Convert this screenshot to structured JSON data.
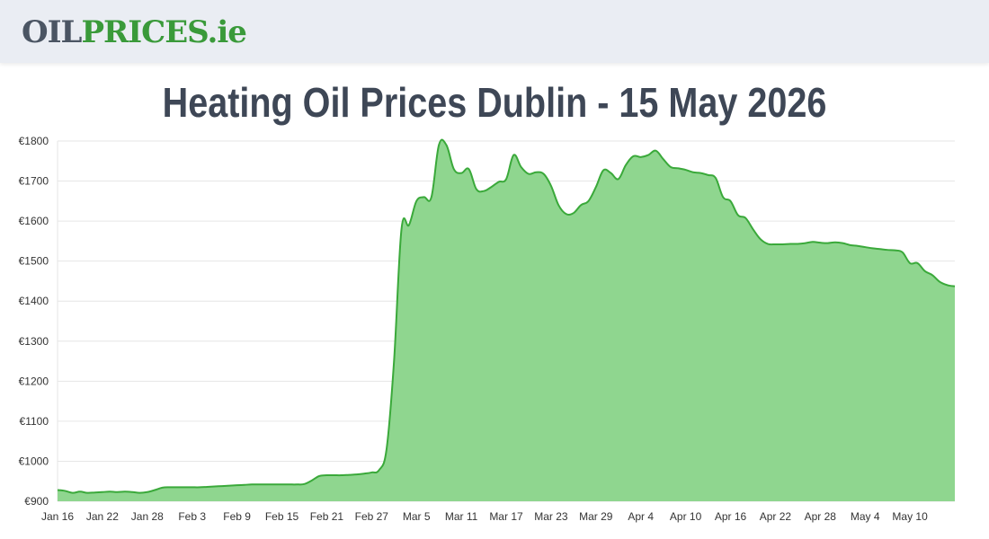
{
  "header": {
    "logo_part1": "OIL",
    "logo_part2": "PRICES",
    "logo_part3": ".ie"
  },
  "page_title": "Heating Oil Prices Dublin - 15 May 2026",
  "colors": {
    "line": "#3aa93a",
    "fill": "#8fd68f",
    "grid": "#e6e6e6",
    "axis_text": "#333333",
    "title": "#3e4756"
  },
  "chart_data": {
    "type": "area",
    "title": "",
    "xlabel": "",
    "ylabel": "",
    "currency_prefix": "€",
    "ylim": [
      900,
      1800
    ],
    "yticks": [
      900,
      1000,
      1100,
      1200,
      1300,
      1400,
      1500,
      1600,
      1700,
      1800
    ],
    "xticks": [
      {
        "day": 0,
        "label": "Jan 16"
      },
      {
        "day": 6,
        "label": "Jan 22"
      },
      {
        "day": 12,
        "label": "Jan 28"
      },
      {
        "day": 18,
        "label": "Feb 3"
      },
      {
        "day": 24,
        "label": "Feb 9"
      },
      {
        "day": 30,
        "label": "Feb 15"
      },
      {
        "day": 36,
        "label": "Feb 21"
      },
      {
        "day": 42,
        "label": "Feb 27"
      },
      {
        "day": 48,
        "label": "Mar 5"
      },
      {
        "day": 54,
        "label": "Mar 11"
      },
      {
        "day": 60,
        "label": "Mar 17"
      },
      {
        "day": 66,
        "label": "Mar 23"
      },
      {
        "day": 72,
        "label": "Mar 29"
      },
      {
        "day": 78,
        "label": "Apr 4"
      },
      {
        "day": 84,
        "label": "Apr 10"
      },
      {
        "day": 90,
        "label": "Apr 16"
      },
      {
        "day": 96,
        "label": "Apr 22"
      },
      {
        "day": 102,
        "label": "Apr 28"
      },
      {
        "day": 108,
        "label": "May 4"
      },
      {
        "day": 114,
        "label": "May 10"
      }
    ],
    "series": [
      {
        "points": [
          [
            0,
            928
          ],
          [
            1,
            926
          ],
          [
            2,
            921
          ],
          [
            3,
            924
          ],
          [
            4,
            921
          ],
          [
            5,
            922
          ],
          [
            6,
            923
          ],
          [
            7,
            924
          ],
          [
            8,
            923
          ],
          [
            9,
            924
          ],
          [
            10,
            923
          ],
          [
            11,
            921
          ],
          [
            12,
            923
          ],
          [
            13,
            928
          ],
          [
            14,
            934
          ],
          [
            15,
            935
          ],
          [
            16,
            935
          ],
          [
            17,
            935
          ],
          [
            18,
            935
          ],
          [
            19,
            935
          ],
          [
            20,
            936
          ],
          [
            21,
            937
          ],
          [
            22,
            938
          ],
          [
            23,
            939
          ],
          [
            24,
            940
          ],
          [
            25,
            941
          ],
          [
            26,
            942
          ],
          [
            27,
            942
          ],
          [
            28,
            942
          ],
          [
            29,
            942
          ],
          [
            30,
            942
          ],
          [
            31,
            942
          ],
          [
            32,
            942
          ],
          [
            33,
            943
          ],
          [
            34,
            952
          ],
          [
            35,
            963
          ],
          [
            36,
            965
          ],
          [
            37,
            965
          ],
          [
            38,
            965
          ],
          [
            39,
            966
          ],
          [
            40,
            967
          ],
          [
            41,
            969
          ],
          [
            42,
            972
          ],
          [
            43,
            978
          ],
          [
            44,
            1030
          ],
          [
            45,
            1250
          ],
          [
            46,
            1580
          ],
          [
            47,
            1590
          ],
          [
            48,
            1650
          ],
          [
            49,
            1660
          ],
          [
            50,
            1660
          ],
          [
            51,
            1790
          ],
          [
            52,
            1790
          ],
          [
            53,
            1730
          ],
          [
            54,
            1720
          ],
          [
            55,
            1730
          ],
          [
            56,
            1680
          ],
          [
            57,
            1675
          ],
          [
            58,
            1685
          ],
          [
            59,
            1698
          ],
          [
            60,
            1705
          ],
          [
            61,
            1765
          ],
          [
            62,
            1735
          ],
          [
            63,
            1718
          ],
          [
            64,
            1722
          ],
          [
            65,
            1718
          ],
          [
            66,
            1688
          ],
          [
            67,
            1640
          ],
          [
            68,
            1618
          ],
          [
            69,
            1620
          ],
          [
            70,
            1640
          ],
          [
            71,
            1650
          ],
          [
            72,
            1685
          ],
          [
            73,
            1727
          ],
          [
            74,
            1720
          ],
          [
            75,
            1705
          ],
          [
            76,
            1740
          ],
          [
            77,
            1762
          ],
          [
            78,
            1760
          ],
          [
            79,
            1765
          ],
          [
            80,
            1776
          ],
          [
            81,
            1755
          ],
          [
            82,
            1735
          ],
          [
            83,
            1732
          ],
          [
            84,
            1728
          ],
          [
            85,
            1722
          ],
          [
            86,
            1720
          ],
          [
            87,
            1715
          ],
          [
            88,
            1708
          ],
          [
            89,
            1660
          ],
          [
            90,
            1650
          ],
          [
            91,
            1615
          ],
          [
            92,
            1608
          ],
          [
            93,
            1580
          ],
          [
            94,
            1555
          ],
          [
            95,
            1543
          ],
          [
            96,
            1542
          ],
          [
            97,
            1542
          ],
          [
            98,
            1543
          ],
          [
            99,
            1543
          ],
          [
            100,
            1545
          ],
          [
            101,
            1548
          ],
          [
            102,
            1546
          ],
          [
            103,
            1545
          ],
          [
            104,
            1547
          ],
          [
            105,
            1545
          ],
          [
            106,
            1540
          ],
          [
            107,
            1538
          ],
          [
            108,
            1535
          ],
          [
            109,
            1532
          ],
          [
            110,
            1530
          ],
          [
            111,
            1528
          ],
          [
            112,
            1527
          ],
          [
            113,
            1522
          ],
          [
            114,
            1495
          ],
          [
            115,
            1495
          ],
          [
            116,
            1475
          ],
          [
            117,
            1465
          ],
          [
            118,
            1448
          ],
          [
            119,
            1440
          ],
          [
            120,
            1437
          ]
        ]
      }
    ],
    "grid": true,
    "legend": "none"
  }
}
